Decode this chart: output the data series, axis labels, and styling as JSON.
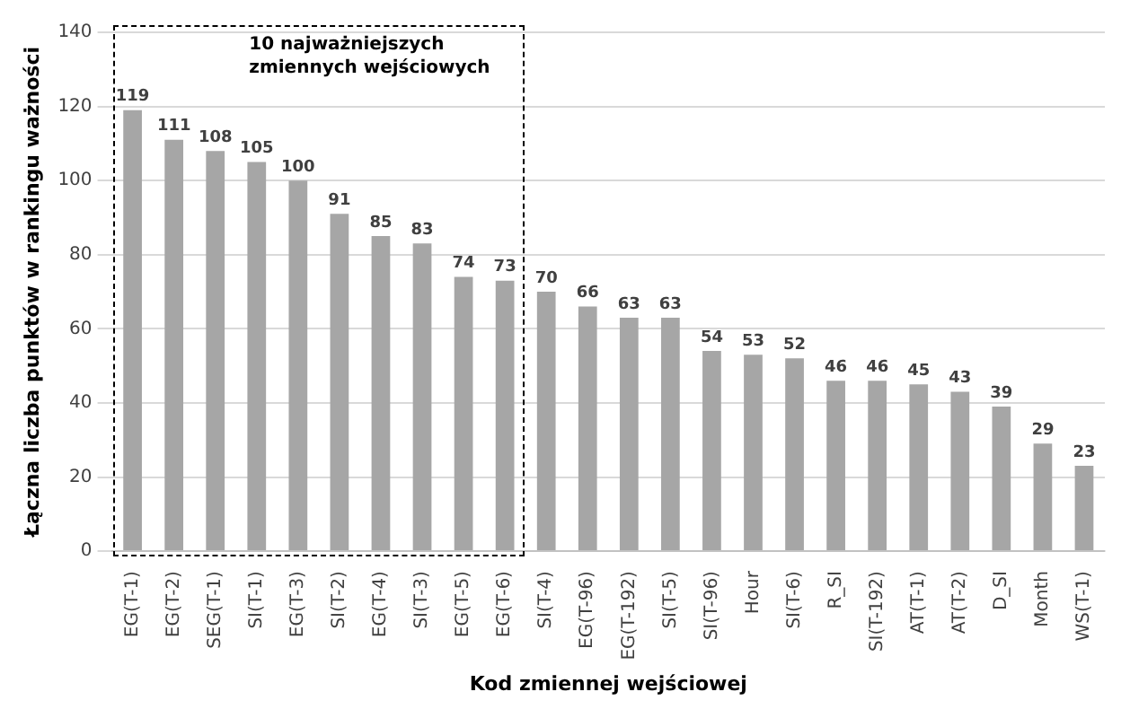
{
  "chart_data": {
    "type": "bar",
    "xlabel": "Kod zmiennej wejściowej",
    "ylabel": "Łączna liczba punktów w rankingu ważności",
    "categories": [
      "EG(T-1)",
      "EG(T-2)",
      "SEG(T-1)",
      "SI(T-1)",
      "EG(T-3)",
      "SI(T-2)",
      "EG(T-4)",
      "SI(T-3)",
      "EG(T-5)",
      "EG(T-6)",
      "SI(T-4)",
      "EG(T-96)",
      "EG(T-192)",
      "SI(T-5)",
      "SI(T-96)",
      "Hour",
      "SI(T-6)",
      "R_SI",
      "SI(T-192)",
      "AT(T-1)",
      "AT(T-2)",
      "D_SI",
      "Month",
      "WS(T-1)"
    ],
    "values": [
      119,
      111,
      108,
      105,
      100,
      91,
      85,
      83,
      74,
      73,
      70,
      66,
      63,
      63,
      54,
      53,
      52,
      46,
      46,
      45,
      43,
      39,
      29,
      23
    ],
    "color": "#a6a6a6",
    "ylim": [
      0,
      140
    ],
    "yticks": [
      0,
      20,
      40,
      60,
      80,
      100,
      120,
      140
    ],
    "grid": "y",
    "data_labels": true,
    "legend": false,
    "annotations": [
      "10 najważniejszych zmiennych wejściowych"
    ]
  }
}
